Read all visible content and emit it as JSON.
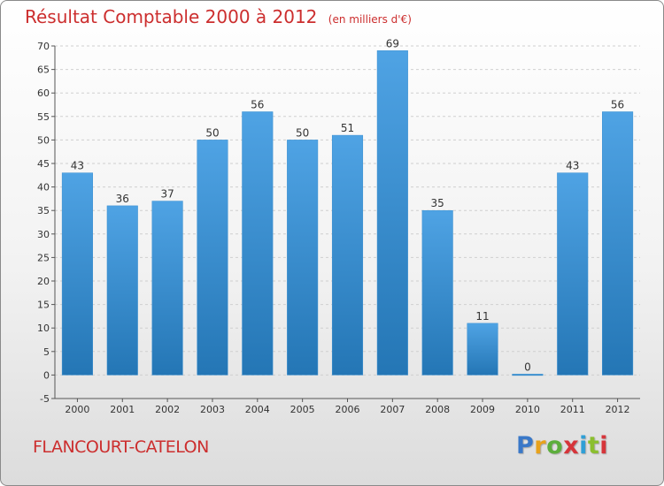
{
  "chart_data": {
    "type": "bar",
    "title": "Résultat Comptable 2000 à 2012",
    "subtitle": "(en milliers d'€)",
    "categories": [
      "2000",
      "2001",
      "2002",
      "2003",
      "2004",
      "2005",
      "2006",
      "2007",
      "2008",
      "2009",
      "2010",
      "2011",
      "2012"
    ],
    "values": [
      43,
      36,
      37,
      50,
      56,
      50,
      51,
      69,
      35,
      11,
      0,
      43,
      56
    ],
    "ylim": [
      -5,
      70
    ],
    "yticks": [
      -5,
      0,
      5,
      10,
      15,
      20,
      25,
      30,
      35,
      40,
      45,
      50,
      55,
      60,
      65,
      70
    ],
    "grid": true,
    "bar_color": "#4fa3e4",
    "bar_color_dark": "#2476b5"
  },
  "location": "FLANCOURT-CATELON",
  "logo": {
    "letters": [
      "P",
      "r",
      "o",
      "x",
      "i",
      "t",
      "i"
    ],
    "colors": [
      "#3a78c8",
      "#e8a21c",
      "#5cae3c",
      "#d6353a",
      "#2f9fd6",
      "#8bbf2f",
      "#d6353a"
    ]
  }
}
